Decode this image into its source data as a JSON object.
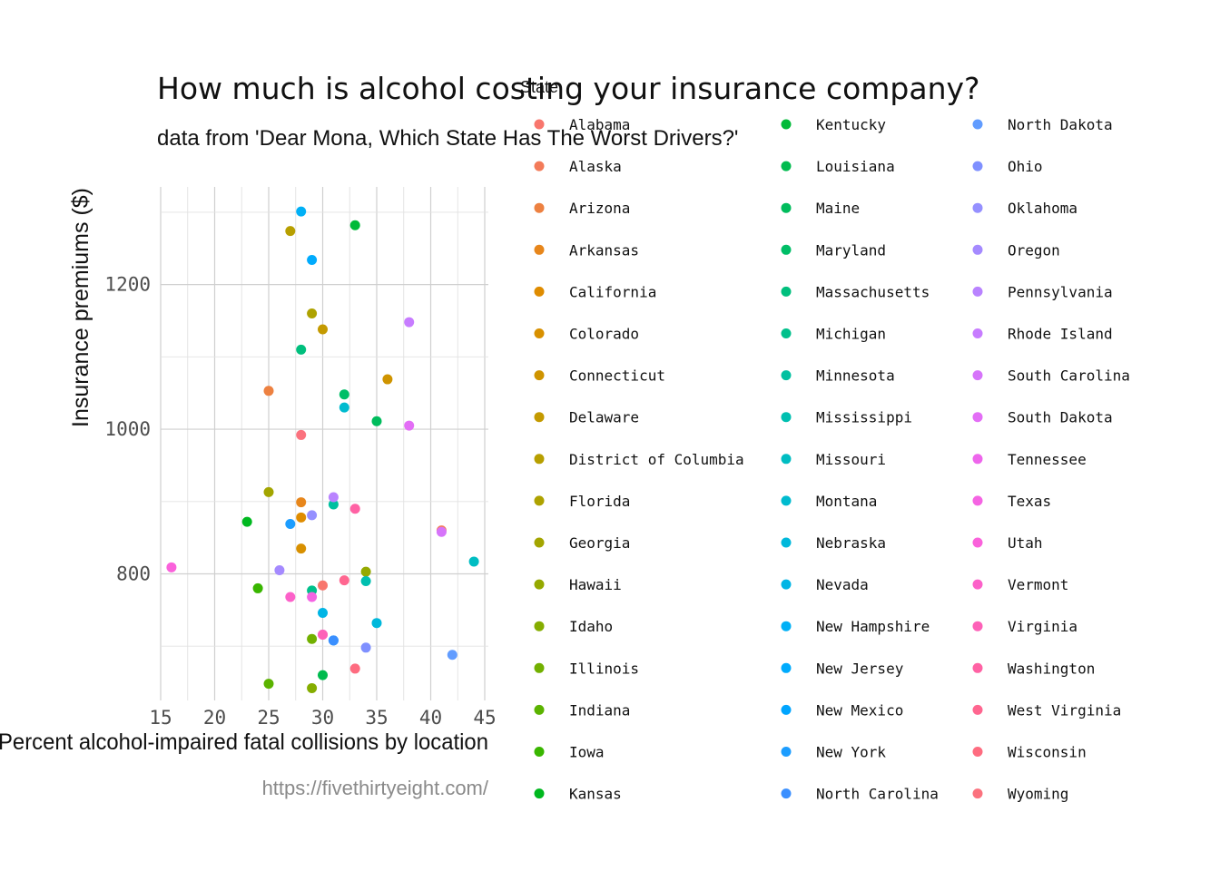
{
  "chart_data": {
    "type": "scatter",
    "title": "How much is alcohol costing your insurance company?",
    "subtitle": "data from 'Dear Mona, Which State Has The Worst Drivers?'",
    "xlabel": "Percent alcohol-impaired fatal collisions by location",
    "ylabel": "Insurance premiums ($)",
    "caption": "https://fivethirtyeight.com/",
    "xlim": [
      15,
      45
    ],
    "ylim": [
      625,
      1335
    ],
    "x_ticks": [
      15,
      20,
      25,
      30,
      35,
      40,
      45
    ],
    "y_ticks": [
      800,
      1000,
      1200
    ],
    "grid": true,
    "legend": {
      "title": "State",
      "placement": "right",
      "columns": 3
    },
    "points": [
      {
        "state": "Alabama",
        "x": 30,
        "y": 784,
        "color": "#F8766D"
      },
      {
        "state": "Alaska",
        "x": 41,
        "y": 860,
        "color": "#F37B59"
      },
      {
        "state": "Arizona",
        "x": 25,
        "y": 1053,
        "color": "#ED8141"
      },
      {
        "state": "Arkansas",
        "x": 28,
        "y": 899,
        "color": "#E7861B"
      },
      {
        "state": "California",
        "x": 28,
        "y": 878,
        "color": "#DF8C00"
      },
      {
        "state": "Colorado",
        "x": 28,
        "y": 835,
        "color": "#D89000"
      },
      {
        "state": "Connecticut",
        "x": 36,
        "y": 1069,
        "color": "#CF9400"
      },
      {
        "state": "Delaware",
        "x": 30,
        "y": 1138,
        "color": "#C49A00"
      },
      {
        "state": "District of Columbia",
        "x": 27,
        "y": 1274,
        "color": "#B79F00"
      },
      {
        "state": "Florida",
        "x": 29,
        "y": 1160,
        "color": "#AEA200"
      },
      {
        "state": "Georgia",
        "x": 25,
        "y": 913,
        "color": "#A3A500"
      },
      {
        "state": "Hawaii",
        "x": 34,
        "y": 803,
        "color": "#95A900"
      },
      {
        "state": "Idaho",
        "x": 29,
        "y": 642,
        "color": "#85AD00"
      },
      {
        "state": "Illinois",
        "x": 29,
        "y": 710,
        "color": "#72B000"
      },
      {
        "state": "Indiana",
        "x": 25,
        "y": 648,
        "color": "#5BB300"
      },
      {
        "state": "Iowa",
        "x": 24,
        "y": 780,
        "color": "#39B600"
      },
      {
        "state": "Kansas",
        "x": 23,
        "y": 872,
        "color": "#00B81F"
      },
      {
        "state": "Kentucky",
        "x": 33,
        "y": 1282,
        "color": "#00BA38"
      },
      {
        "state": "Louisiana",
        "x": 30,
        "y": 660,
        "color": "#00BB4E"
      },
      {
        "state": "Maine",
        "x": 35,
        "y": 1011,
        "color": "#00BC5C"
      },
      {
        "state": "Maryland",
        "x": 32,
        "y": 1048,
        "color": "#00BE67"
      },
      {
        "state": "Massachusetts",
        "x": 28,
        "y": 1110,
        "color": "#00BF7D"
      },
      {
        "state": "Michigan",
        "x": 29,
        "y": 777,
        "color": "#00C08B"
      },
      {
        "state": "Minnesota",
        "x": 31,
        "y": 896,
        "color": "#00C0A0"
      },
      {
        "state": "Mississippi",
        "x": 34,
        "y": 790,
        "color": "#00BFB0"
      },
      {
        "state": "Missouri",
        "x": 44,
        "y": 817,
        "color": "#00BDC2"
      },
      {
        "state": "Montana",
        "x": 32,
        "y": 1030,
        "color": "#00BBCF"
      },
      {
        "state": "Nebraska",
        "x": 35,
        "y": 732,
        "color": "#00B8DB"
      },
      {
        "state": "Nevada",
        "x": 30,
        "y": 746,
        "color": "#00B5E5"
      },
      {
        "state": "New Hampshire",
        "x": 28,
        "y": 1301,
        "color": "#00B0F6"
      },
      {
        "state": "New Jersey",
        "x": 29,
        "y": 1234,
        "color": "#00ABFD"
      },
      {
        "state": "New Mexico",
        "x": 31,
        "y": 708,
        "color": "#00A5FF"
      },
      {
        "state": "New York",
        "x": 27,
        "y": 869,
        "color": "#1C9DFF"
      },
      {
        "state": "North Carolina",
        "x": 31,
        "y": 708,
        "color": "#3A8FFF"
      },
      {
        "state": "North Dakota",
        "x": 42,
        "y": 688,
        "color": "#619CFF"
      },
      {
        "state": "Ohio",
        "x": 34,
        "y": 698,
        "color": "#7F90FF"
      },
      {
        "state": "Oklahoma",
        "x": 29,
        "y": 881,
        "color": "#9590FF"
      },
      {
        "state": "Oregon",
        "x": 26,
        "y": 805,
        "color": "#A58AFF"
      },
      {
        "state": "Pennsylvania",
        "x": 31,
        "y": 906,
        "color": "#B983FF"
      },
      {
        "state": "Rhode Island",
        "x": 38,
        "y": 1148,
        "color": "#C77CFF"
      },
      {
        "state": "South Carolina",
        "x": 41,
        "y": 858,
        "color": "#D674FA"
      },
      {
        "state": "South Dakota",
        "x": 38,
        "y": 1005,
        "color": "#E36EF6"
      },
      {
        "state": "Tennessee",
        "x": 30,
        "y": 716,
        "color": "#EE66EC"
      },
      {
        "state": "Texas",
        "x": 29,
        "y": 768,
        "color": "#F564E3"
      },
      {
        "state": "Utah",
        "x": 16,
        "y": 809,
        "color": "#FA62DB"
      },
      {
        "state": "Vermont",
        "x": 27,
        "y": 768,
        "color": "#FC61C9"
      },
      {
        "state": "Virginia",
        "x": 30,
        "y": 716,
        "color": "#FD61B8"
      },
      {
        "state": "Washington",
        "x": 33,
        "y": 890,
        "color": "#FF62A4"
      },
      {
        "state": "West Virginia",
        "x": 32,
        "y": 791,
        "color": "#FF6690"
      },
      {
        "state": "Wisconsin",
        "x": 33,
        "y": 669,
        "color": "#FE6C80"
      },
      {
        "state": "Wyoming",
        "x": 28,
        "y": 992,
        "color": "#FB727E"
      }
    ]
  }
}
